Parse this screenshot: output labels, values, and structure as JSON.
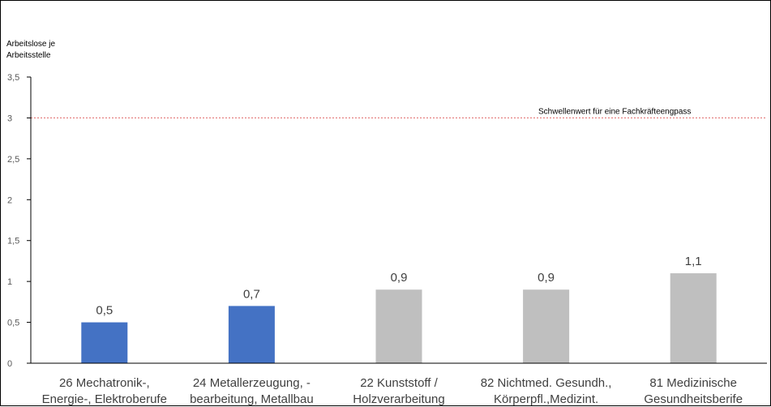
{
  "chart_data": {
    "type": "bar",
    "ylabel_lines": [
      "Arbeitslose je",
      "Arbeitsstelle"
    ],
    "ylim": [
      0,
      3.5
    ],
    "yticks": [
      "0",
      "0,5",
      "1",
      "1,5",
      "2",
      "2,5",
      "3",
      "3,5"
    ],
    "categories": [
      [
        "26 Mechatronik-,",
        "Energie-, Elektroberufe"
      ],
      [
        "24 Metallerzeugung, -",
        "bearbeitung, Metallbau"
      ],
      [
        "22 Kunststoff /",
        "Holzverarbeitung"
      ],
      [
        "82 Nichtmed. Gesundh.,",
        "Körperpfl.,Medizint."
      ],
      [
        "81 Medizinische",
        "Gesundheitsberife"
      ]
    ],
    "values": [
      0.5,
      0.7,
      0.9,
      0.9,
      1.1
    ],
    "value_labels": [
      "0,5",
      "0,7",
      "0,9",
      "0,9",
      "1,1"
    ],
    "bar_colors": [
      "#4472C4",
      "#4472C4",
      "#BFBFBF",
      "#BFBFBF",
      "#BFBFBF"
    ],
    "threshold": {
      "value": 3,
      "label": "Schwellenwert für eine Fachkräfteengpass",
      "color": "#E06666"
    },
    "axis_color": "#000000",
    "grid": false,
    "legend": "none"
  }
}
